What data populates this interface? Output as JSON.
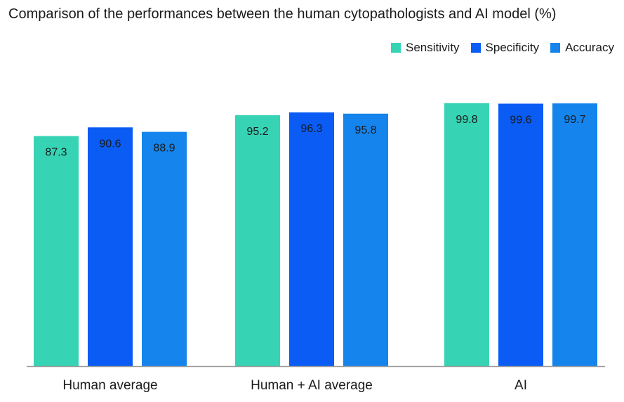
{
  "chart_data": {
    "type": "bar",
    "title": "Comparison of the performances between the human cytopathologists and AI model (%)",
    "categories": [
      "Human average",
      "Human + AI average",
      "AI"
    ],
    "series": [
      {
        "name": "Sensitivity",
        "color": "#36d3b4",
        "values": [
          87.3,
          95.2,
          99.8
        ]
      },
      {
        "name": "Specificity",
        "color": "#0a5cf5",
        "values": [
          90.6,
          96.3,
          99.6
        ]
      },
      {
        "name": "Accuracy",
        "color": "#1584ec",
        "values": [
          88.9,
          95.8,
          99.7
        ]
      }
    ],
    "ylim": [
      0,
      100
    ],
    "grid": false,
    "legend_position": "top-right",
    "baseline_color": "#9a9a9a"
  }
}
